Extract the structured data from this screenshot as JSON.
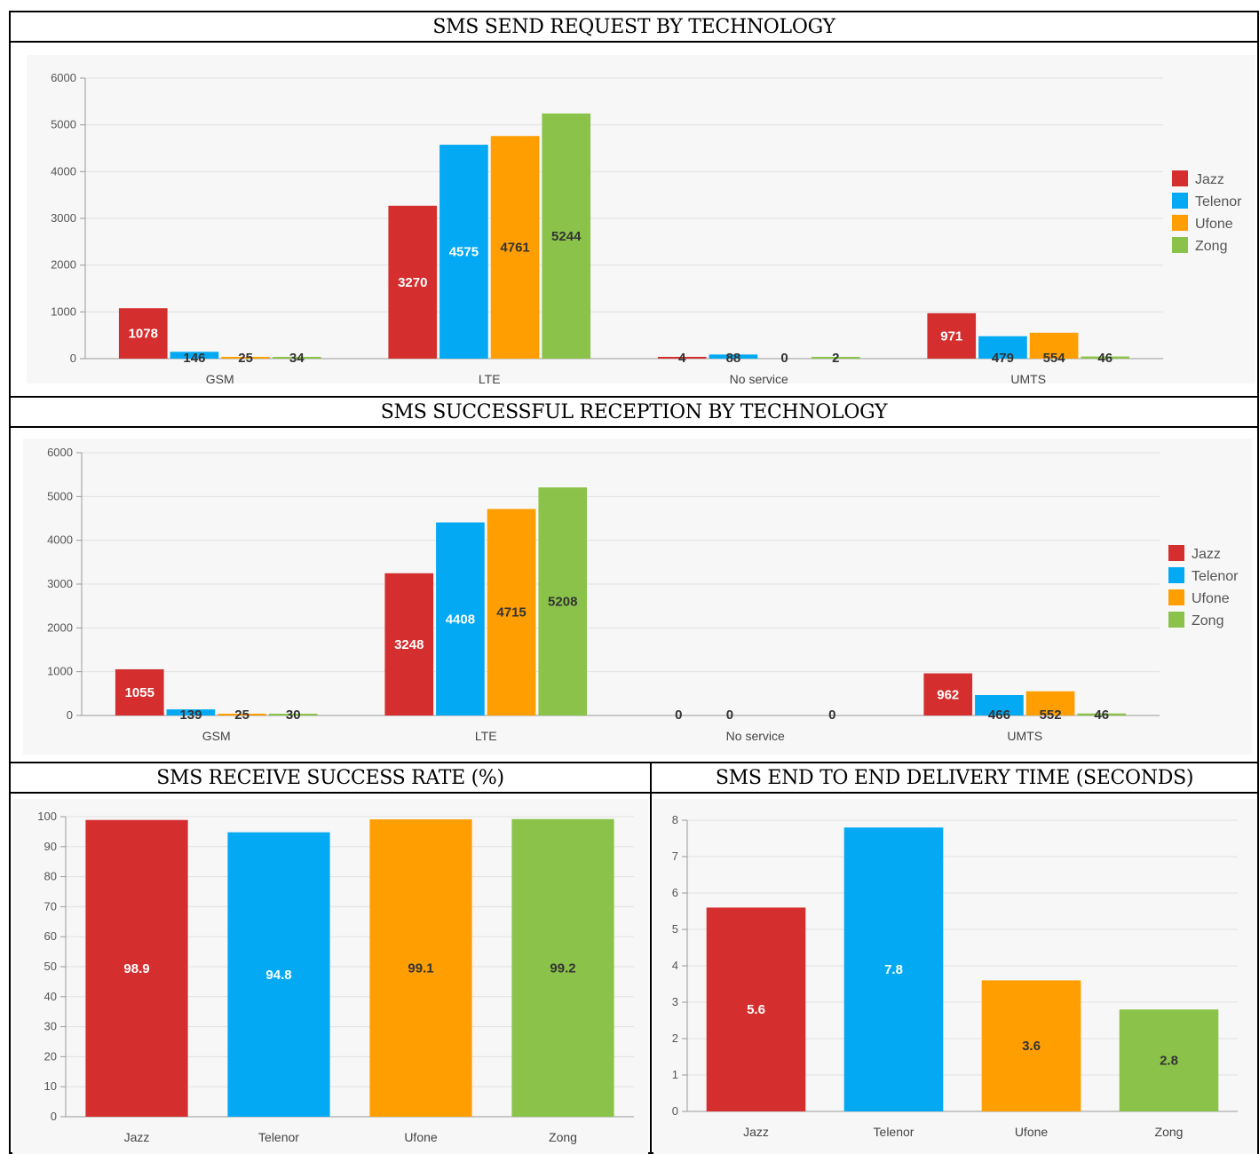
{
  "colors": {
    "Jazz": "#d42e2e",
    "Telenor": "#04a9f3",
    "Ufone": "#fe9e01",
    "Zong": "#8bc34a"
  },
  "panels": {
    "send": {
      "title": "SMS SEND REQUEST BY TECHNOLOGY"
    },
    "reception": {
      "title": "SMS SUCCESSFUL RECEPTION BY TECHNOLOGY"
    },
    "rate": {
      "title": "SMS RECEIVE SUCCESS RATE (%)"
    },
    "delivery": {
      "title": "SMS END TO END DELIVERY TIME (SECONDS)"
    }
  },
  "chart_data": [
    {
      "id": "send",
      "type": "bar",
      "title": "SMS SEND REQUEST BY TECHNOLOGY",
      "categories": [
        "GSM",
        "LTE",
        "No service",
        "UMTS"
      ],
      "series": [
        {
          "name": "Jazz",
          "values": [
            1078,
            3270,
            4,
            971
          ]
        },
        {
          "name": "Telenor",
          "values": [
            146,
            4575,
            88,
            479
          ]
        },
        {
          "name": "Ufone",
          "values": [
            25,
            4761,
            0,
            554
          ]
        },
        {
          "name": "Zong",
          "values": [
            34,
            5244,
            2,
            46
          ]
        }
      ],
      "ylim": [
        0,
        6000
      ],
      "yticks": [
        0,
        1000,
        2000,
        3000,
        4000,
        5000,
        6000
      ],
      "legend": "right",
      "grid": true
    },
    {
      "id": "reception",
      "type": "bar",
      "title": "SMS SUCCESSFUL RECEPTION BY TECHNOLOGY",
      "categories": [
        "GSM",
        "LTE",
        "No service",
        "UMTS"
      ],
      "series": [
        {
          "name": "Jazz",
          "values": [
            1055,
            3248,
            0,
            962
          ]
        },
        {
          "name": "Telenor",
          "values": [
            139,
            4408,
            0,
            466
          ]
        },
        {
          "name": "Ufone",
          "values": [
            25,
            4715,
            null,
            552
          ]
        },
        {
          "name": "Zong",
          "values": [
            30,
            5208,
            0,
            46
          ]
        }
      ],
      "ylim": [
        0,
        6000
      ],
      "yticks": [
        0,
        1000,
        2000,
        3000,
        4000,
        5000,
        6000
      ],
      "legend": "right",
      "grid": true
    },
    {
      "id": "rate",
      "type": "bar",
      "title": "SMS RECEIVE SUCCESS RATE (%)",
      "categories": [
        "Jazz",
        "Telenor",
        "Ufone",
        "Zong"
      ],
      "values": [
        98.9,
        94.8,
        99.1,
        99.2
      ],
      "ylim": [
        0,
        100
      ],
      "yticks": [
        0,
        10,
        20,
        30,
        40,
        50,
        60,
        70,
        80,
        90,
        100
      ],
      "grid": true
    },
    {
      "id": "delivery",
      "type": "bar",
      "title": "SMS END TO END DELIVERY TIME (SECONDS)",
      "categories": [
        "Jazz",
        "Telenor",
        "Ufone",
        "Zong"
      ],
      "values": [
        5.6,
        7.8,
        3.6,
        2.8
      ],
      "ylim": [
        0,
        8
      ],
      "yticks": [
        0,
        1,
        2,
        3,
        4,
        5,
        6,
        7,
        8
      ],
      "grid": true
    }
  ]
}
